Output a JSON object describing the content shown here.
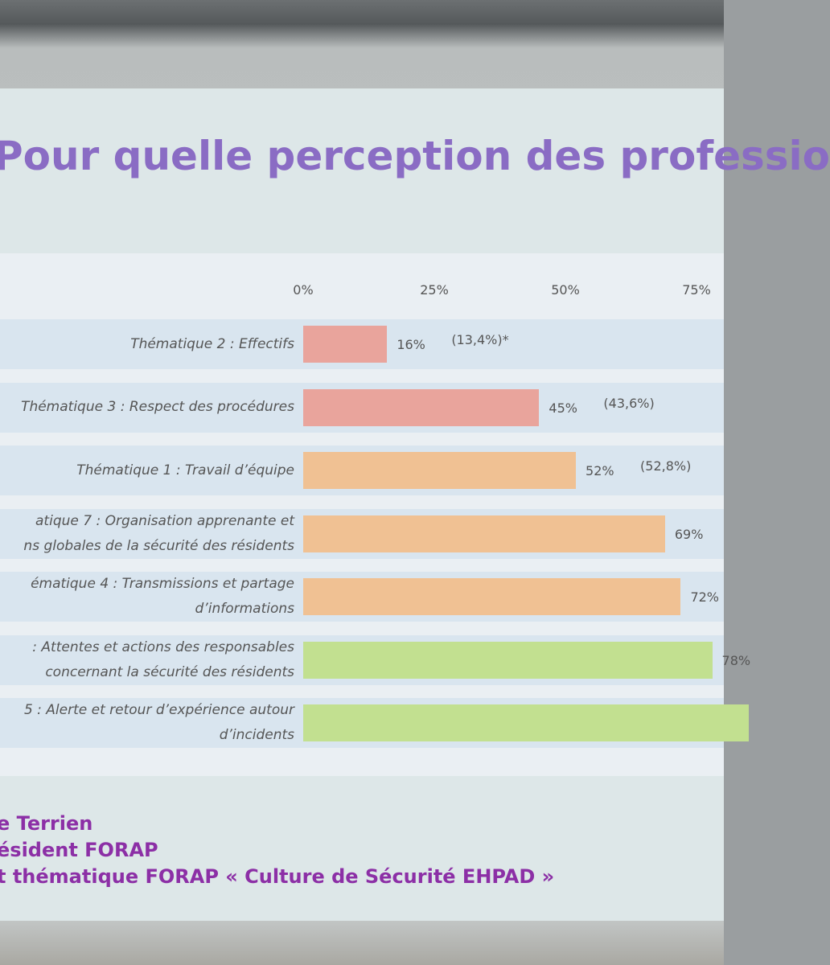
{
  "chart_data": {
    "type": "barh",
    "title": "Pour quelle perception des professio",
    "categories": [
      "Thématique 2 : Effectifs",
      "Thématique 3 : Respect des procédures",
      "Thématique 1 : Travail d’équipe",
      "atique 7 : Organisation apprenante et\nns globales de la sécurité des résidents",
      "ématique 4 : Transmissions et partage\nd’informations",
      ": Attentes et actions des responsables\nconcernant la sécurité des résidents",
      "5 : Alerte et retour d’expérience autour\nd’incidents"
    ],
    "values": [
      16,
      45,
      52,
      69,
      72,
      78,
      85
    ],
    "value_labels": [
      "16%",
      "45%",
      "52%",
      "69%",
      "72%",
      "78%",
      null
    ],
    "previous_labels": [
      "(13,4%)*",
      "(43,6%)",
      "(52,8%)",
      null,
      null,
      null,
      null
    ],
    "colors": [
      "#e9a49c",
      "#e9a49c",
      "#f0c193",
      "#f0c193",
      "#f0c193",
      "#c2e090",
      "#c2e090"
    ],
    "xlim": [
      0,
      80
    ],
    "xticks": [
      {
        "value": 0,
        "label": "0%"
      },
      {
        "value": 25,
        "label": "25%"
      },
      {
        "value": 50,
        "label": "50%"
      },
      {
        "value": 75,
        "label": "75%"
      }
    ],
    "footer": [
      "e Terrien",
      "ésident FORAP",
      "t thématique FORAP « Culture de Sécurité EHPAD »"
    ]
  }
}
